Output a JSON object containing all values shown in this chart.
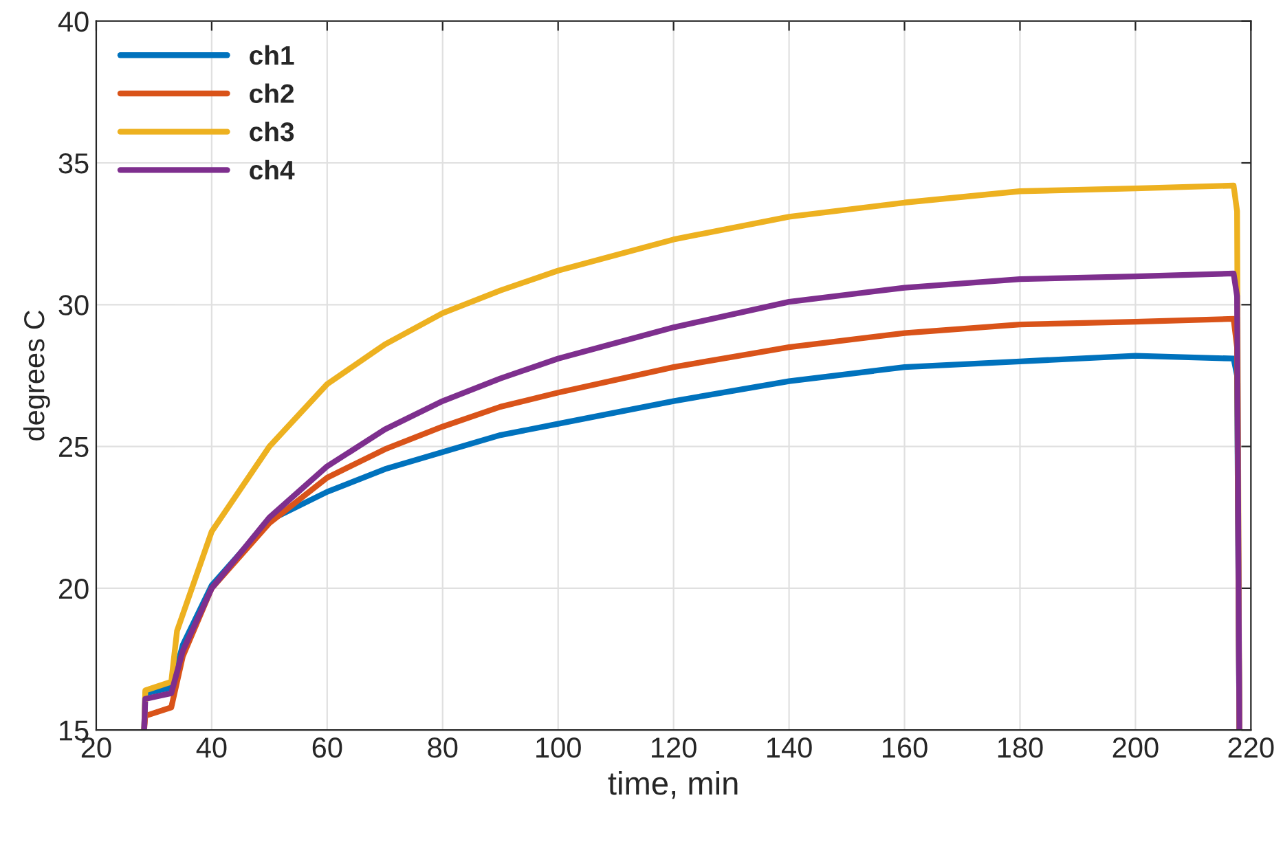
{
  "chart_data": {
    "type": "line",
    "xlabel": "time, min",
    "ylabel": "degrees C",
    "xlim": [
      20,
      220
    ],
    "xticks": [
      20,
      40,
      60,
      80,
      100,
      120,
      140,
      160,
      180,
      200,
      220
    ],
    "ylim": [
      15,
      40
    ],
    "yticks": [
      15,
      20,
      25,
      30,
      35,
      40
    ],
    "grid": true,
    "legend": "top left",
    "series": [
      {
        "name": "ch1",
        "color": "#0072bd",
        "x": [
          28.3,
          28.5,
          33,
          35,
          40,
          50,
          60,
          70,
          80,
          90,
          100,
          120,
          140,
          160,
          180,
          200,
          217,
          217.6,
          218
        ],
        "values": [
          15,
          16.3,
          16.5,
          18,
          20.1,
          22.4,
          23.4,
          24.2,
          24.8,
          25.4,
          25.8,
          26.6,
          27.3,
          27.8,
          28.0,
          28.2,
          28.1,
          27.5,
          15
        ]
      },
      {
        "name": "ch2",
        "color": "#d95319",
        "x": [
          28.3,
          28.5,
          33,
          35,
          40,
          50,
          60,
          70,
          80,
          90,
          100,
          120,
          140,
          160,
          180,
          200,
          217,
          217.6,
          218
        ],
        "values": [
          15,
          15.5,
          15.8,
          17.6,
          20,
          22.3,
          23.9,
          24.9,
          25.7,
          26.4,
          26.9,
          27.8,
          28.5,
          29.0,
          29.3,
          29.4,
          29.5,
          28.5,
          15
        ]
      },
      {
        "name": "ch3",
        "color": "#edb120",
        "x": [
          28.3,
          28.5,
          33,
          34,
          40,
          50,
          60,
          70,
          80,
          90,
          100,
          120,
          140,
          160,
          180,
          200,
          217,
          217.6,
          218
        ],
        "values": [
          15,
          16.4,
          16.7,
          18.5,
          22,
          25,
          27.2,
          28.6,
          29.7,
          30.5,
          31.2,
          32.3,
          33.1,
          33.6,
          34.0,
          34.1,
          34.2,
          33.3,
          15
        ]
      },
      {
        "name": "ch4",
        "color": "#7e2f8e",
        "x": [
          28.3,
          28.5,
          33,
          35,
          40,
          50,
          60,
          70,
          80,
          90,
          100,
          120,
          140,
          160,
          180,
          200,
          217,
          217.6,
          218
        ],
        "values": [
          15,
          16.1,
          16.3,
          17.8,
          20,
          22.5,
          24.3,
          25.6,
          26.6,
          27.4,
          28.1,
          29.2,
          30.1,
          30.6,
          30.9,
          31.0,
          31.1,
          30.3,
          15
        ]
      }
    ]
  }
}
